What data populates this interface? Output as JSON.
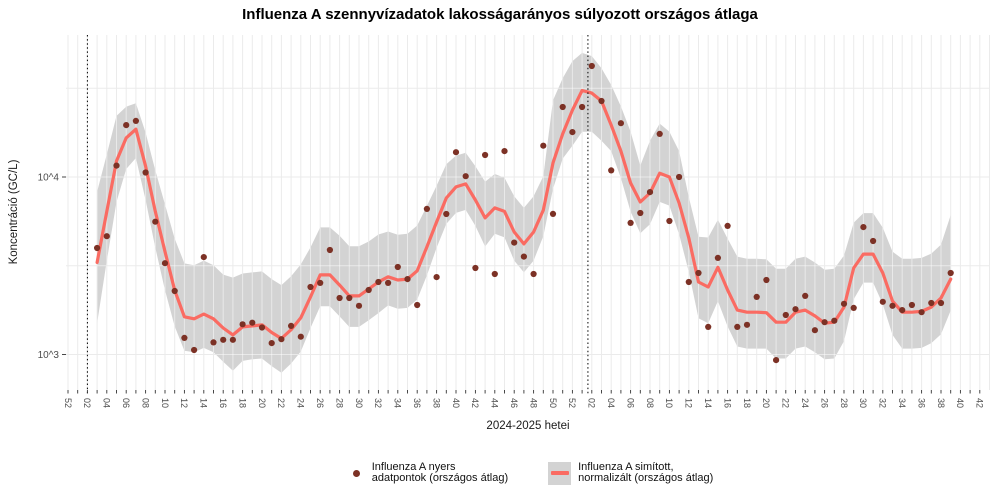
{
  "title": "Influenza A szennyvízadatok lakosságarányos súlyozott országos átlaga",
  "axes": {
    "y_title": "Koncentráció (GC/L)",
    "x_title": "2024-2025 hetei",
    "y_tick_labels": [
      "10^4",
      "10^3"
    ],
    "y_tick_values": [
      10000,
      1000
    ]
  },
  "legend": {
    "raw_label": "Influenza A nyers\n adatpontok (országos átlag)",
    "smoothed_label": "Influenza A simított,\n normalizált (országos átlag)"
  },
  "colors": {
    "smoothed_line": "#FA6B62",
    "raw_points": "#7C3125",
    "band": "#D3D3D3",
    "grid": "#EBEBEB",
    "axis_text": "#4D4D4D",
    "tick": "#333333",
    "vline": "#000000",
    "title_text": "#000000"
  },
  "chart_data": {
    "type": "line",
    "y_scale": "log10",
    "ylim": [
      630,
      63000
    ],
    "x_axis_start_week": "2023-W52",
    "x_label_step_weeks": 2,
    "x_tick_labels": [
      "52",
      "02",
      "04",
      "06",
      "08",
      "10",
      "12",
      "14",
      "16",
      "18",
      "20",
      "22",
      "24",
      "26",
      "28",
      "30",
      "32",
      "34",
      "36",
      "38",
      "40",
      "42",
      "44",
      "46",
      "48",
      "50",
      "52",
      "02",
      "04",
      "06",
      "08",
      "10",
      "12",
      "14",
      "16",
      "18",
      "20",
      "22",
      "24",
      "26",
      "28",
      "30",
      "32",
      "34",
      "36",
      "38",
      "40",
      "42"
    ],
    "vline_week_offsets": [
      2,
      53.6
    ],
    "first_point_week_offset": 3,
    "smoothed": [
      3300,
      6400,
      12300,
      16600,
      18600,
      11500,
      6400,
      3800,
      2300,
      1630,
      1590,
      1690,
      1590,
      1410,
      1290,
      1430,
      1450,
      1470,
      1330,
      1230,
      1380,
      1610,
      2110,
      2810,
      2810,
      2460,
      2140,
      2140,
      2340,
      2560,
      2740,
      2630,
      2660,
      2960,
      4040,
      5580,
      7620,
      8790,
      9140,
      7420,
      5880,
      6700,
      6400,
      4900,
      4200,
      4900,
      6500,
      12000,
      17500,
      23800,
      30700,
      29700,
      26800,
      19600,
      14000,
      9250,
      7230,
      8130,
      10500,
      10000,
      7140,
      4530,
      2560,
      2400,
      3100,
      2310,
      1780,
      1730,
      1730,
      1720,
      1520,
      1520,
      1730,
      1780,
      1650,
      1500,
      1520,
      1850,
      3070,
      3680,
      3680,
      2880,
      2000,
      1730,
      1730,
      1750,
      1850,
      2080,
      2660
    ],
    "raw_points": [
      3980,
      4640,
      11600,
      19600,
      20700,
      10600,
      5600,
      3270,
      2280,
      1240,
      1060,
      3540,
      1170,
      1210,
      1210,
      1480,
      1510,
      1420,
      1160,
      1220,
      1450,
      1260,
      2400,
      2530,
      3880,
      2080,
      2080,
      1880,
      2310,
      2560,
      2530,
      3110,
      2660,
      1900,
      6610,
      2730,
      6190,
      13800,
      10100,
      3070,
      13300,
      2840,
      14000,
      4270,
      3560,
      2840,
      15000,
      6200,
      24800,
      17900,
      24800,
      42200,
      26800,
      10900,
      20100,
      5510,
      6270,
      8220,
      17500,
      5650,
      10000,
      2560,
      2880,
      1430,
      3500,
      5300,
      1430,
      1470,
      2110,
      2630,
      930,
      1670,
      1800,
      2140,
      1370,
      1520,
      1550,
      1930,
      1830,
      5220,
      4360,
      1980,
      1880,
      1780,
      1900,
      1730,
      1950,
      1950,
      2880
    ],
    "band_upper": [
      8250,
      13400,
      22100,
      24900,
      26000,
      17800,
      10900,
      7000,
      4500,
      3260,
      3180,
      3380,
      3180,
      2820,
      2710,
      2860,
      2900,
      2940,
      2660,
      2460,
      2760,
      3220,
      4010,
      5200,
      5200,
      4670,
      4070,
      4070,
      4330,
      4740,
      4930,
      4730,
      4790,
      5330,
      6870,
      8930,
      11800,
      13200,
      13700,
      11500,
      9410,
      10400,
      9900,
      7800,
      6700,
      7800,
      10100,
      27000,
      36000,
      45000,
      50000,
      48000,
      41000,
      33000,
      25000,
      18000,
      11600,
      16000,
      20000,
      18000,
      14000,
      7700,
      4610,
      4560,
      5740,
      4500,
      3560,
      3460,
      3460,
      3440,
      3040,
      3040,
      3460,
      3560,
      3300,
      3000,
      3040,
      3610,
      5530,
      6260,
      6260,
      5180,
      3800,
      3460,
      3460,
      3500,
      3700,
      4160,
      6100
    ],
    "band_lower": [
      1500,
      3370,
      7240,
      11100,
      12800,
      7420,
      4000,
      2300,
      1440,
      1050,
      1030,
      1090,
      1030,
      910,
      810,
      920,
      940,
      950,
      860,
      790,
      890,
      1040,
      1410,
      1870,
      1870,
      1640,
      1430,
      1430,
      1560,
      1710,
      1890,
      1810,
      1830,
      2040,
      2790,
      3990,
      5440,
      6280,
      6530,
      5300,
      4060,
      4790,
      4570,
      3380,
      2900,
      3380,
      4640,
      8570,
      12700,
      15000,
      18000,
      18000,
      16000,
      14000,
      9860,
      6380,
      4820,
      5420,
      7240,
      6900,
      4760,
      2920,
      1600,
      1500,
      2000,
      1440,
      1110,
      1080,
      1080,
      1080,
      950,
      950,
      1080,
      1110,
      1030,
      940,
      950,
      1190,
      2050,
      2540,
      2540,
      1920,
      1290,
      1080,
      1080,
      1090,
      1160,
      1300,
      1770
    ]
  }
}
